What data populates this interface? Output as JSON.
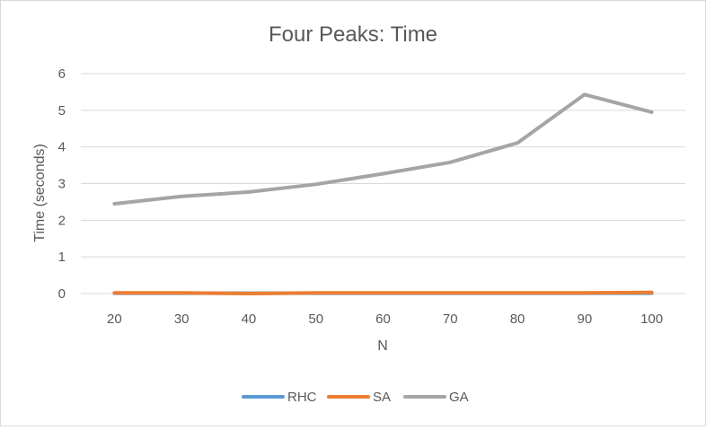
{
  "chart_data": {
    "type": "line",
    "title": "Four Peaks: Time",
    "xlabel": "N",
    "ylabel": "Time (seconds)",
    "categories": [
      "20",
      "30",
      "40",
      "50",
      "60",
      "70",
      "80",
      "90",
      "100"
    ],
    "ylim": [
      0,
      6
    ],
    "yticks": [
      "0",
      "1",
      "2",
      "3",
      "4",
      "5",
      "6"
    ],
    "grid": "horizontal",
    "legend_position": "bottom",
    "series": [
      {
        "name": "RHC",
        "color": "#5b9bd5",
        "values": [
          0.01,
          0.01,
          0.01,
          0.01,
          0.01,
          0.01,
          0.01,
          0.01,
          0.01
        ]
      },
      {
        "name": "SA",
        "color": "#ed7d31",
        "values": [
          0.02,
          0.02,
          0.0,
          0.02,
          0.02,
          0.02,
          0.02,
          0.02,
          0.03
        ]
      },
      {
        "name": "GA",
        "color": "#a5a5a5",
        "values": [
          2.45,
          2.65,
          2.77,
          2.98,
          3.27,
          3.58,
          4.11,
          5.43,
          4.95
        ]
      }
    ]
  }
}
